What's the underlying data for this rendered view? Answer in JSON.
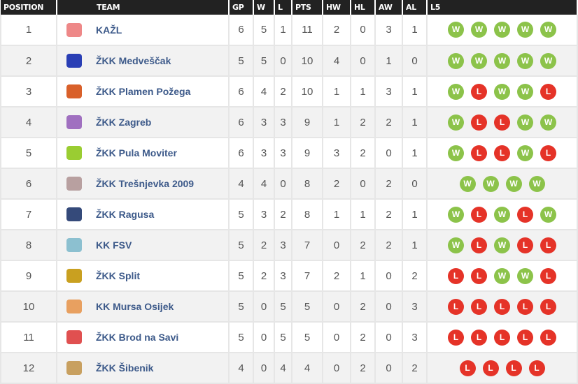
{
  "headers": [
    "POSITION",
    "TEAM",
    "GP",
    "W",
    "L",
    "PTS",
    "HW",
    "HL",
    "AW",
    "AL",
    "L5"
  ],
  "colors": {
    "win": "#8cc34a",
    "loss": "#e53328",
    "header_bg": "#222222",
    "team_link": "#3d5a8a"
  },
  "rows": [
    {
      "pos": "1",
      "team": "KAŽL",
      "gp": "6",
      "w": "5",
      "l": "1",
      "pts": "11",
      "hw": "2",
      "hl": "0",
      "aw": "3",
      "al": "1",
      "l5": [
        "W",
        "W",
        "W",
        "W",
        "W"
      ],
      "logo": "#e88"
    },
    {
      "pos": "2",
      "team": "ŽKK Medveščak",
      "gp": "5",
      "w": "5",
      "l": "0",
      "pts": "10",
      "hw": "4",
      "hl": "0",
      "aw": "1",
      "al": "0",
      "l5": [
        "W",
        "W",
        "W",
        "W",
        "W"
      ],
      "logo": "#2a3fb5"
    },
    {
      "pos": "3",
      "team": "ŽKK Plamen Požega",
      "gp": "6",
      "w": "4",
      "l": "2",
      "pts": "10",
      "hw": "1",
      "hl": "1",
      "aw": "3",
      "al": "1",
      "l5": [
        "W",
        "L",
        "W",
        "W",
        "L"
      ],
      "logo": "#d9602a"
    },
    {
      "pos": "4",
      "team": "ŽKK Zagreb",
      "gp": "6",
      "w": "3",
      "l": "3",
      "pts": "9",
      "hw": "1",
      "hl": "2",
      "aw": "2",
      "al": "1",
      "l5": [
        "W",
        "L",
        "L",
        "W",
        "W"
      ],
      "logo": "#a070c0"
    },
    {
      "pos": "5",
      "team": "ŽKK Pula Moviter",
      "gp": "6",
      "w": "3",
      "l": "3",
      "pts": "9",
      "hw": "3",
      "hl": "2",
      "aw": "0",
      "al": "1",
      "l5": [
        "W",
        "L",
        "L",
        "W",
        "L"
      ],
      "logo": "#9acd32"
    },
    {
      "pos": "6",
      "team": "ŽKK Trešnjevka 2009",
      "gp": "4",
      "w": "4",
      "l": "0",
      "pts": "8",
      "hw": "2",
      "hl": "0",
      "aw": "2",
      "al": "0",
      "l5": [
        "W",
        "W",
        "W",
        "W"
      ],
      "logo": "#b8a0a0"
    },
    {
      "pos": "7",
      "team": "ŽKK Ragusa",
      "gp": "5",
      "w": "3",
      "l": "2",
      "pts": "8",
      "hw": "1",
      "hl": "1",
      "aw": "2",
      "al": "1",
      "l5": [
        "W",
        "L",
        "W",
        "L",
        "W"
      ],
      "logo": "#354a7a"
    },
    {
      "pos": "8",
      "team": "KK FSV",
      "gp": "5",
      "w": "2",
      "l": "3",
      "pts": "7",
      "hw": "0",
      "hl": "2",
      "aw": "2",
      "al": "1",
      "l5": [
        "W",
        "L",
        "W",
        "L",
        "L"
      ],
      "logo": "#8cc0d0"
    },
    {
      "pos": "9",
      "team": "ŽKK Split",
      "gp": "5",
      "w": "2",
      "l": "3",
      "pts": "7",
      "hw": "2",
      "hl": "1",
      "aw": "0",
      "al": "2",
      "l5": [
        "L",
        "L",
        "W",
        "W",
        "L"
      ],
      "logo": "#c9a020"
    },
    {
      "pos": "10",
      "team": "KK Mursa Osijek",
      "gp": "5",
      "w": "0",
      "l": "5",
      "pts": "5",
      "hw": "0",
      "hl": "2",
      "aw": "0",
      "al": "3",
      "l5": [
        "L",
        "L",
        "L",
        "L",
        "L"
      ],
      "logo": "#e8a060"
    },
    {
      "pos": "11",
      "team": "ŽKK Brod na Savi",
      "gp": "5",
      "w": "0",
      "l": "5",
      "pts": "5",
      "hw": "0",
      "hl": "2",
      "aw": "0",
      "al": "3",
      "l5": [
        "L",
        "L",
        "L",
        "L",
        "L"
      ],
      "logo": "#e05050"
    },
    {
      "pos": "12",
      "team": "ŽKK Šibenik",
      "gp": "4",
      "w": "0",
      "l": "4",
      "pts": "4",
      "hw": "0",
      "hl": "2",
      "aw": "0",
      "al": "2",
      "l5": [
        "L",
        "L",
        "L",
        "L"
      ],
      "logo": "#c8a060"
    }
  ]
}
